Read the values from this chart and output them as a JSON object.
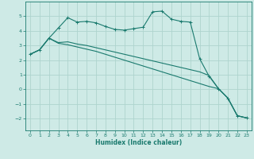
{
  "xlabel": "Humidex (Indice chaleur)",
  "xlim": [
    -0.5,
    23.5
  ],
  "ylim": [
    -2.8,
    6.0
  ],
  "yticks": [
    -2,
    -1,
    0,
    1,
    2,
    3,
    4,
    5
  ],
  "xticks": [
    0,
    1,
    2,
    3,
    4,
    5,
    6,
    7,
    8,
    9,
    10,
    11,
    12,
    13,
    14,
    15,
    16,
    17,
    18,
    19,
    20,
    21,
    22,
    23
  ],
  "bg_color": "#ceeae6",
  "grid_color": "#aed4ce",
  "line_color": "#1a7a6e",
  "line1_x": [
    0,
    1,
    2,
    3,
    4,
    5,
    6,
    7,
    8,
    9,
    10,
    11,
    12,
    13,
    14,
    15,
    16,
    17,
    18,
    19,
    20,
    21,
    22,
    23
  ],
  "line1_y": [
    2.4,
    2.7,
    3.5,
    4.2,
    4.9,
    4.6,
    4.65,
    4.55,
    4.3,
    4.1,
    4.05,
    4.15,
    4.25,
    5.3,
    5.35,
    4.8,
    4.65,
    4.6,
    2.1,
    0.9,
    0.05,
    -0.6,
    -1.8,
    -1.95
  ],
  "line2_x": [
    0,
    1,
    2,
    3,
    4,
    5,
    6,
    7,
    8,
    9,
    10,
    11,
    12,
    13,
    14,
    15,
    16,
    17,
    18,
    19,
    20,
    21,
    22,
    23
  ],
  "line2_y": [
    2.4,
    2.7,
    3.5,
    3.2,
    3.25,
    3.1,
    3.0,
    2.85,
    2.7,
    2.55,
    2.4,
    2.25,
    2.1,
    1.95,
    1.8,
    1.65,
    1.5,
    1.35,
    1.2,
    0.95,
    0.05,
    -0.6,
    -1.8,
    -1.95
  ],
  "line3_x": [
    0,
    1,
    2,
    3,
    4,
    5,
    6,
    7,
    8,
    9,
    10,
    11,
    12,
    13,
    14,
    15,
    16,
    17,
    18,
    19,
    20,
    21,
    22,
    23
  ],
  "line3_y": [
    2.4,
    2.7,
    3.5,
    3.15,
    3.05,
    2.9,
    2.75,
    2.6,
    2.4,
    2.2,
    2.0,
    1.8,
    1.6,
    1.4,
    1.2,
    1.0,
    0.8,
    0.6,
    0.4,
    0.2,
    0.05,
    -0.6,
    -1.8,
    -1.95
  ]
}
